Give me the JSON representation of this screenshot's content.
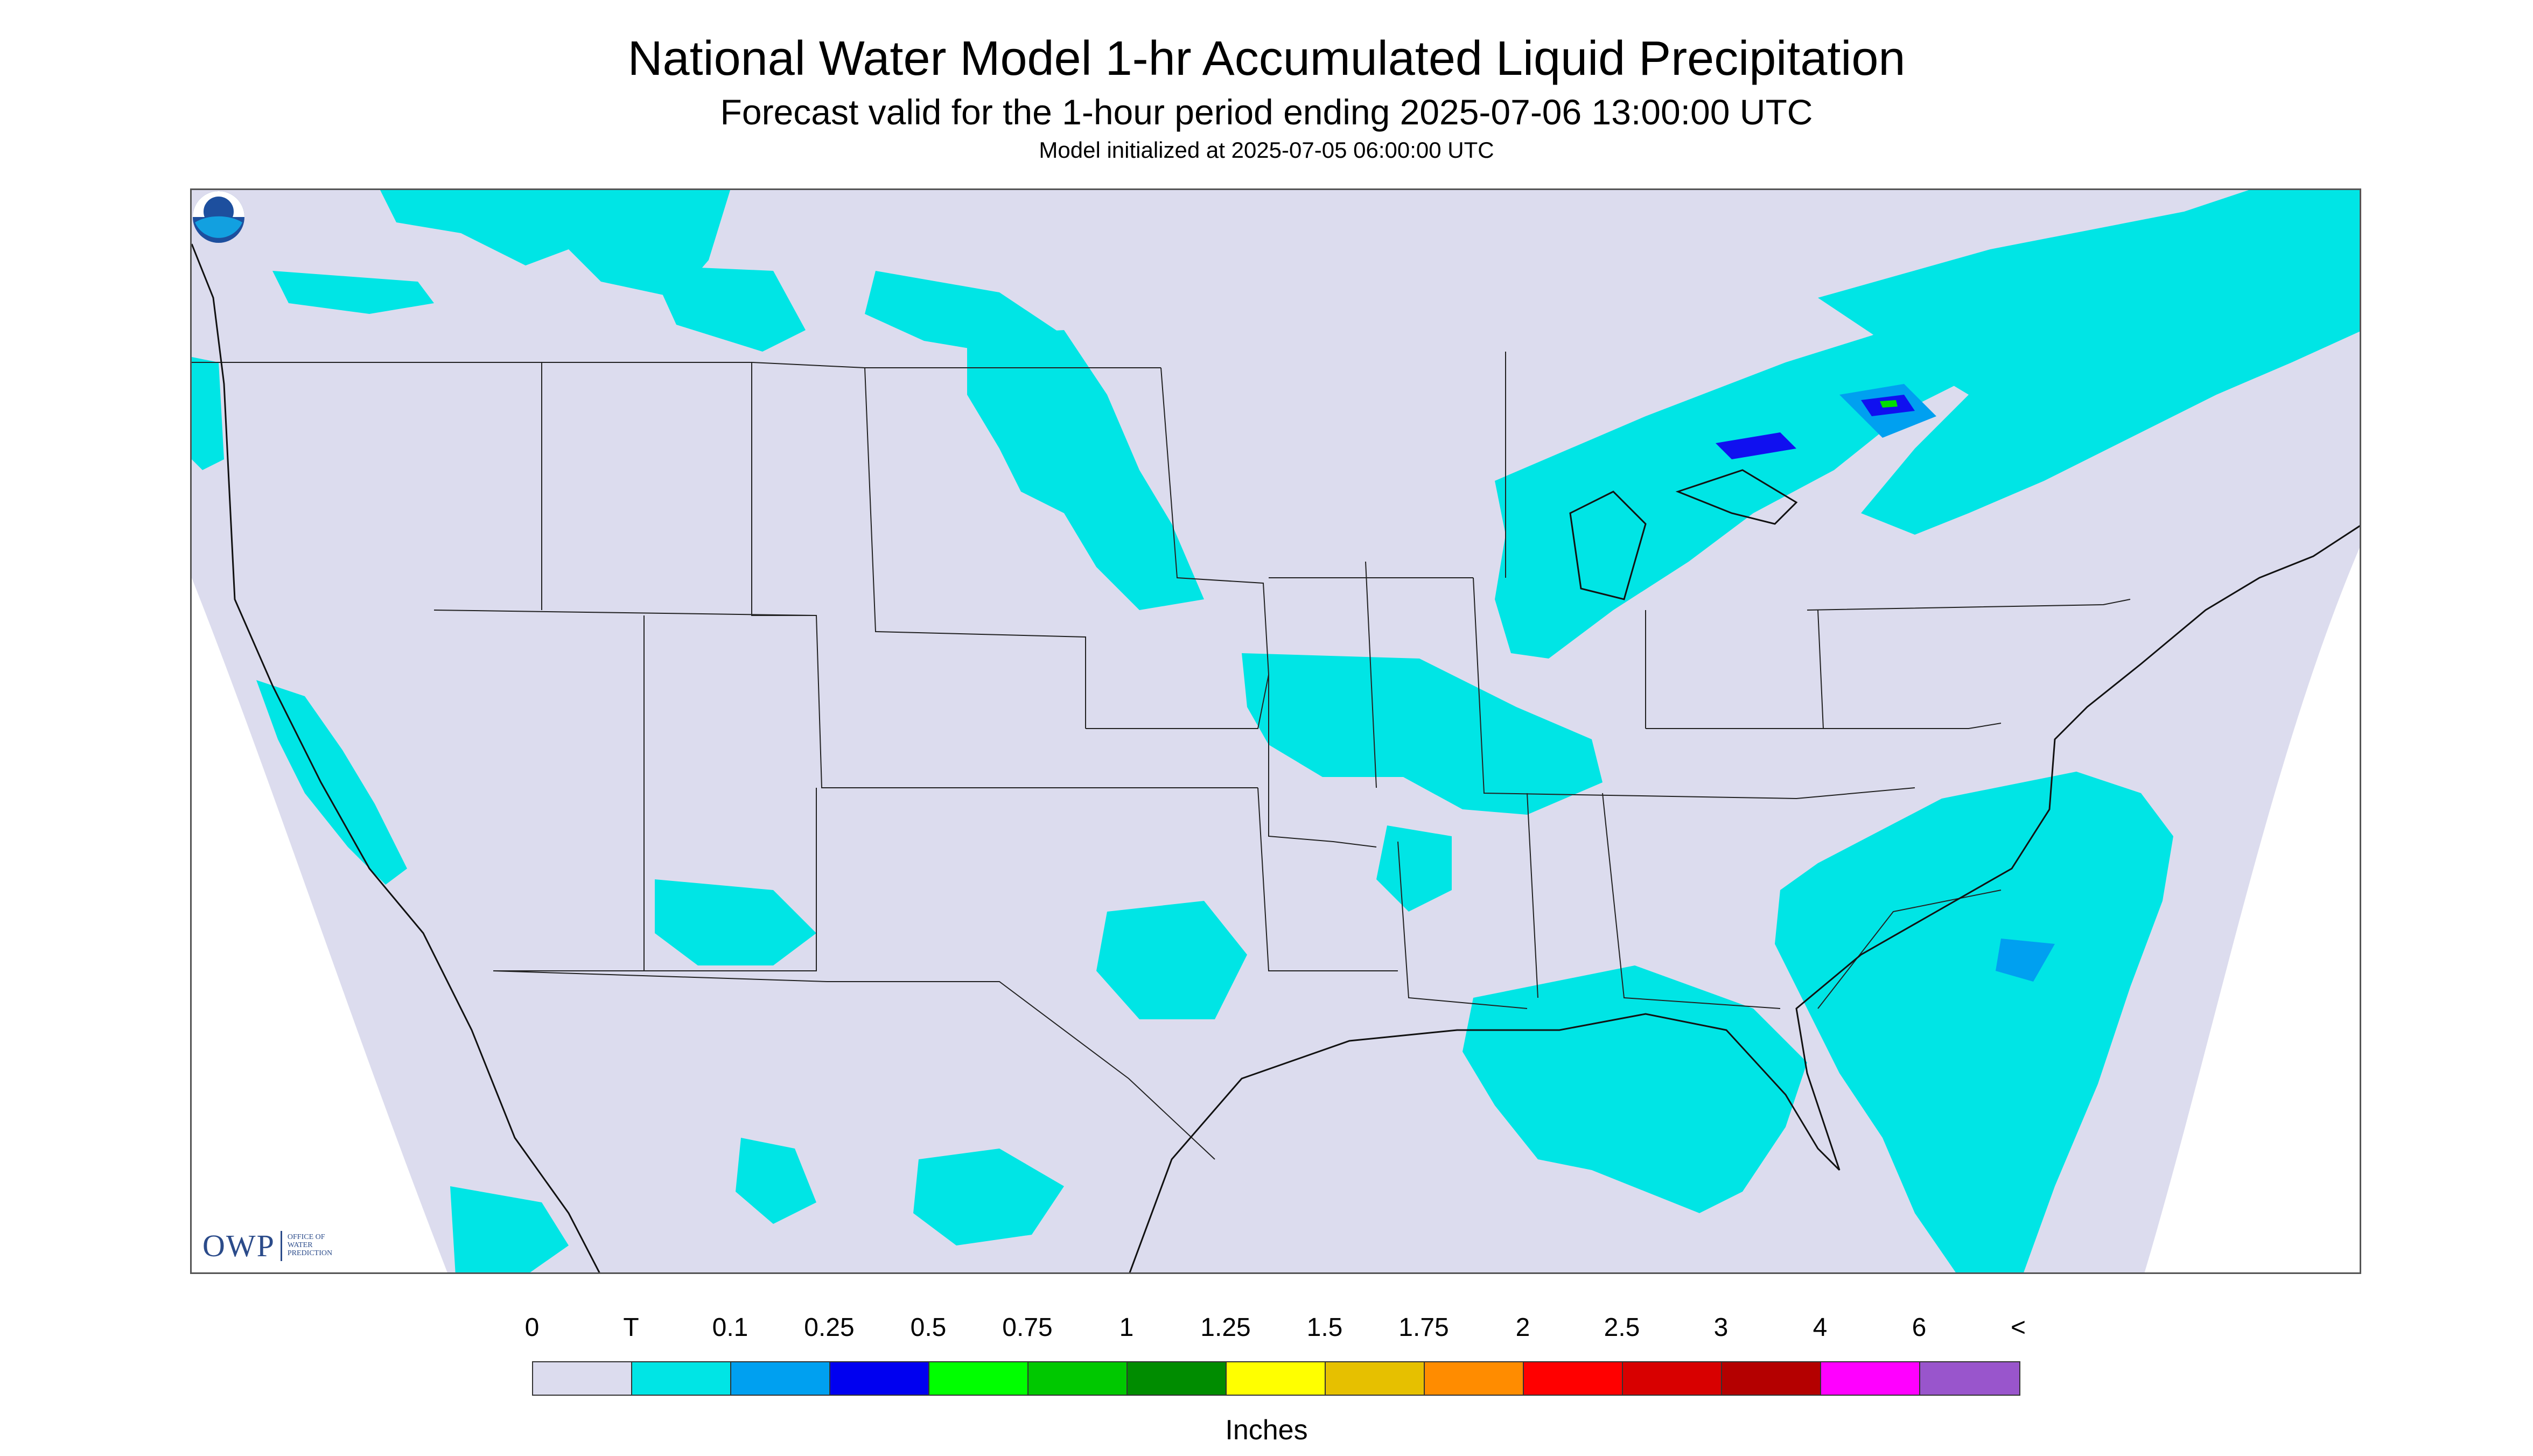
{
  "header": {
    "title": "National Water Model 1-hr Accumulated Liquid Precipitation",
    "subtitle": "Forecast valid for the 1-hour period ending 2025-07-06 13:00:00 UTC",
    "init": "Model initialized at 2025-07-05 06:00:00 UTC"
  },
  "map": {
    "background_color": "#dcdcee",
    "trace_color": "#00e5e5",
    "light_color": "#00a0f0",
    "heavy_color": "#1010f0",
    "green_color": "#00e000",
    "outside_color": "#ffffff"
  },
  "logos": {
    "owp_mark": "OWP",
    "owp_text": "OFFICE OF\nWATER\nPREDICTION",
    "noaa_icon": "noaa-logo"
  },
  "legend": {
    "labels": [
      "0",
      "T",
      "0.1",
      "0.25",
      "0.5",
      "0.75",
      "1",
      "1.25",
      "1.5",
      "1.75",
      "2",
      "2.5",
      "3",
      "4",
      "6",
      "<"
    ],
    "colors": [
      "#dcdcee",
      "#00e5e5",
      "#00a0f0",
      "#0000f0",
      "#00ff00",
      "#00c800",
      "#008c00",
      "#ffff00",
      "#e6c000",
      "#ff8c00",
      "#ff0000",
      "#d80000",
      "#b40000",
      "#ff00ff",
      "#9955cc"
    ],
    "units": "Inches"
  }
}
